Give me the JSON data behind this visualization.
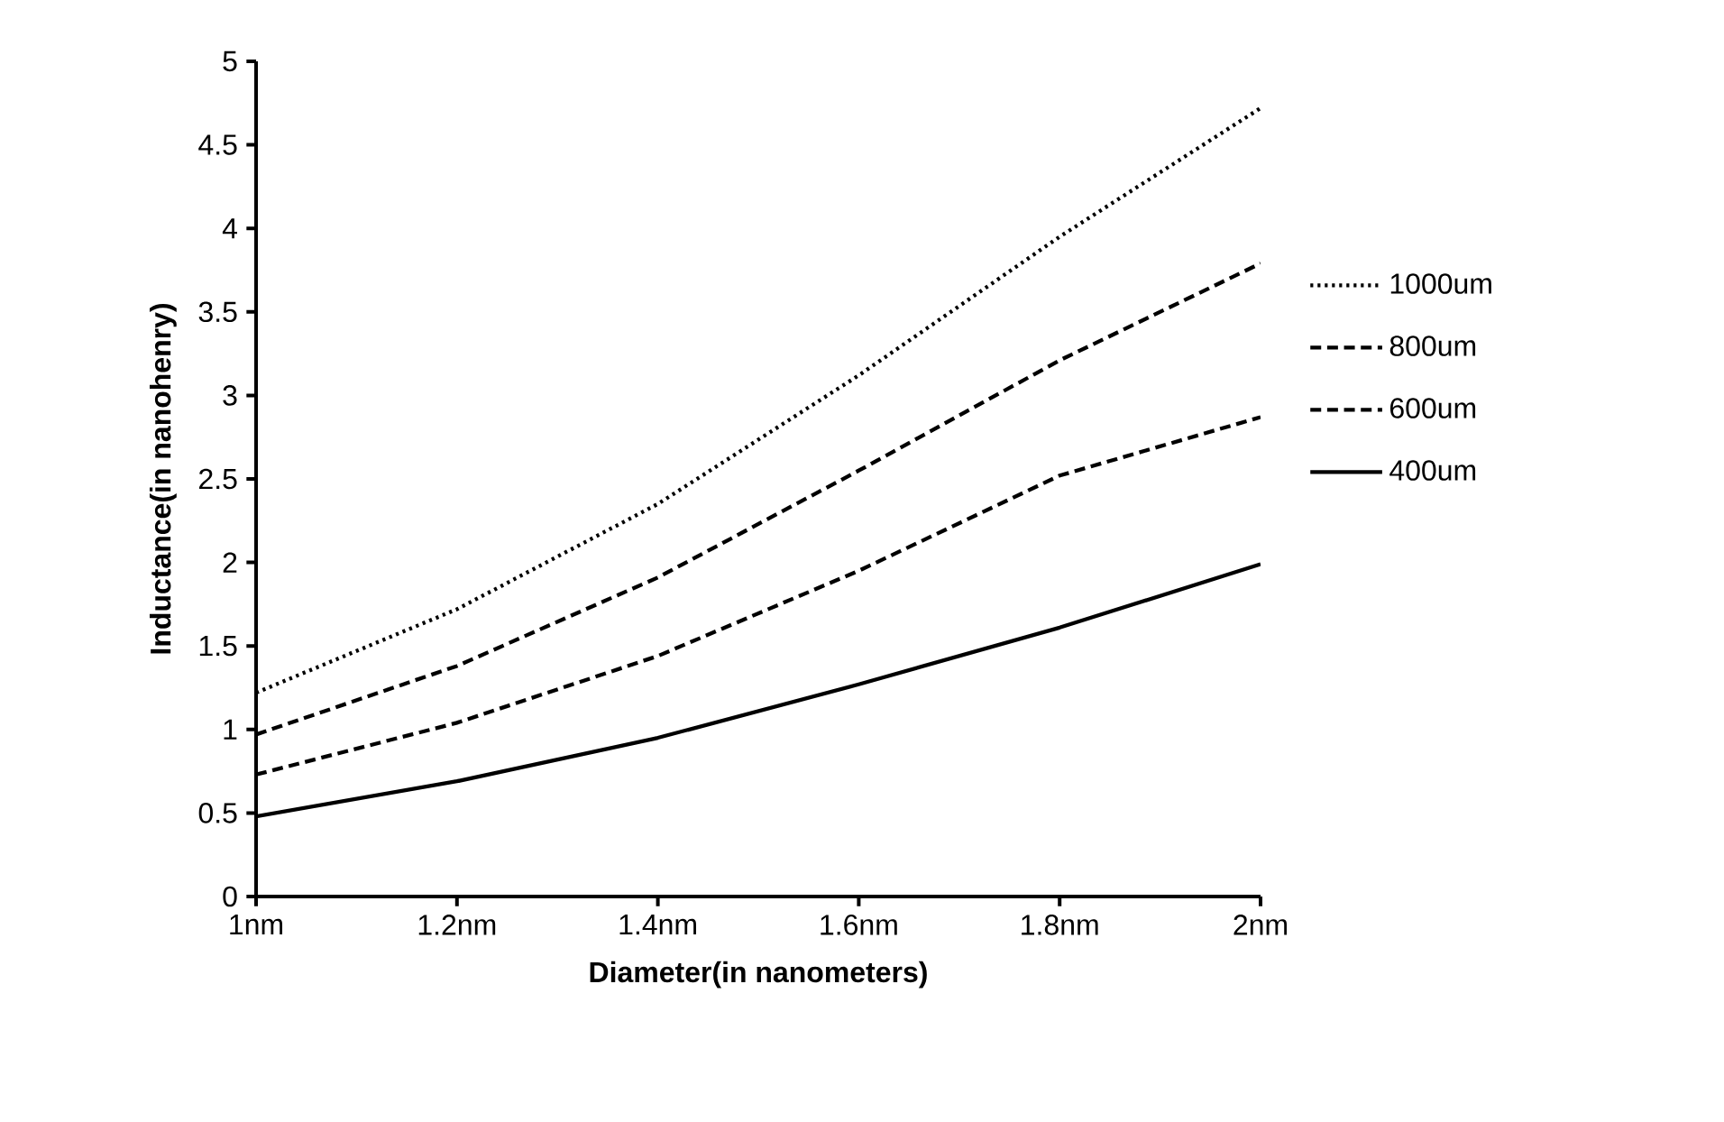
{
  "chart_data": {
    "type": "line",
    "xlabel": "Diameter(in nanometers)",
    "ylabel": "Inductance(in nanohenry)",
    "categories": [
      "1nm",
      "1.2nm",
      "1.4nm",
      "1.6nm",
      "1.8nm",
      "2nm"
    ],
    "ylim": [
      0,
      5
    ],
    "yticks": [
      0,
      0.5,
      1,
      1.5,
      2,
      2.5,
      3,
      3.5,
      4,
      4.5,
      5
    ],
    "legend": "right",
    "grid": false,
    "marker": "none",
    "series": [
      {
        "name": "1000um",
        "color": "#000000",
        "line_style": "dotted",
        "values": [
          1.22,
          1.72,
          2.35,
          3.12,
          3.95,
          4.72
        ]
      },
      {
        "name": "800um",
        "color": "#000000",
        "line_style": "dashed",
        "values": [
          0.97,
          1.38,
          1.91,
          2.55,
          3.21,
          3.79
        ]
      },
      {
        "name": "600um",
        "color": "#000000",
        "line_style": "dashed",
        "values": [
          0.73,
          1.04,
          1.44,
          1.95,
          2.52,
          2.87
        ]
      },
      {
        "name": "400um",
        "color": "#000000",
        "line_style": "solid",
        "values": [
          0.48,
          0.69,
          0.95,
          1.27,
          1.61,
          1.99
        ]
      }
    ]
  }
}
